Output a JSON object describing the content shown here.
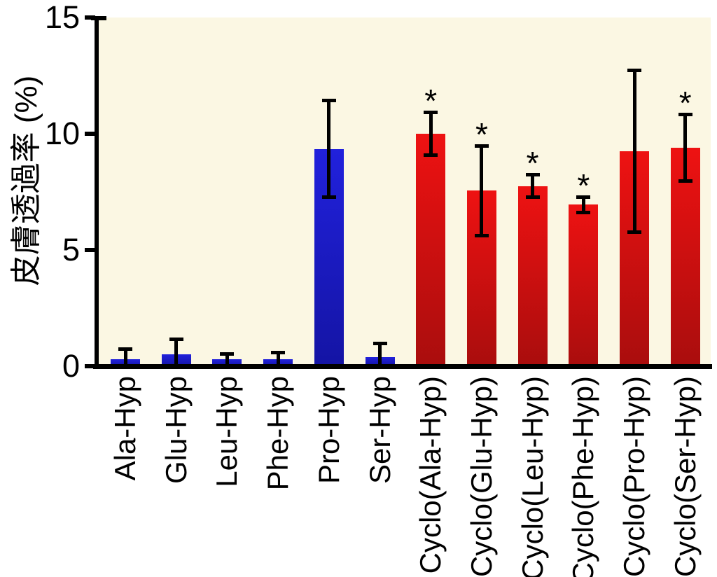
{
  "chart_data": {
    "type": "bar",
    "title": "",
    "ylabel": "皮膚透過率 (%)",
    "xlabel": "",
    "ylim": [
      0,
      15
    ],
    "yticks": [
      0,
      5,
      10,
      15
    ],
    "grid": false,
    "legend_position": "none",
    "categories": [
      "Ala-Hyp",
      "Glu-Hyp",
      "Leu-Hyp",
      "Phe-Hyp",
      "Pro-Hyp",
      "Ser-Hyp",
      "Cyclo(Ala-Hyp)",
      "Cyclo(Glu-Hyp)",
      "Cyclo(Leu-Hyp)",
      "Cyclo(Phe-Hyp)",
      "Cyclo(Pro-Hyp)",
      "Cyclo(Ser-Hyp)"
    ],
    "values": [
      0.3,
      0.5,
      0.3,
      0.3,
      9.35,
      0.4,
      10.0,
      7.55,
      7.75,
      6.95,
      9.25,
      9.4
    ],
    "errors": [
      0.5,
      0.75,
      0.3,
      0.35,
      2.15,
      0.65,
      1.0,
      2.0,
      0.55,
      0.4,
      3.55,
      1.5
    ],
    "significant": [
      false,
      false,
      false,
      false,
      false,
      false,
      true,
      true,
      true,
      true,
      false,
      true
    ],
    "significance_marker": "*",
    "groups": [
      "linear",
      "linear",
      "linear",
      "linear",
      "linear",
      "linear",
      "cyclic",
      "cyclic",
      "cyclic",
      "cyclic",
      "cyclic",
      "cyclic"
    ],
    "colors": {
      "linear_bar_top": "#2121DC",
      "linear_bar_bottom": "#1414A4",
      "cyclic_bar_top": "#EE1212",
      "cyclic_bar_bottom": "#A90D0D",
      "plot_background": "#FBF7E3",
      "axis": "#000000",
      "error_bar": "#000000",
      "page_background": "#FFFFFF"
    }
  }
}
